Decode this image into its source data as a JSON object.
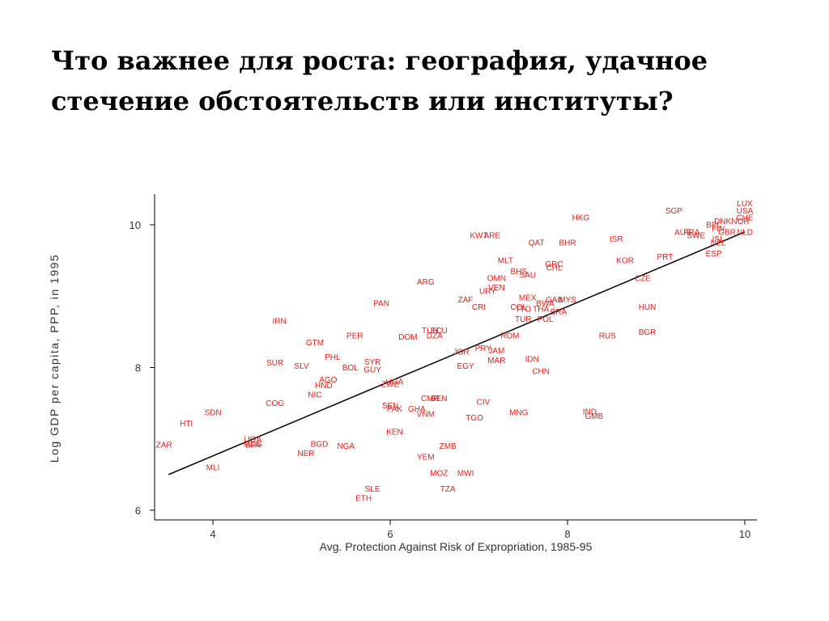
{
  "title": {
    "line1": "Что важнее для роста: география, удачное",
    "line2": "стечение обстоятельств или институты?"
  },
  "colors": {
    "points": "#e0201c",
    "line": "#000000",
    "axis": "#000000"
  },
  "chart_data": {
    "type": "scatter",
    "xlabel": "Avg. Protection Against Risk of Expropriation, 1985-95",
    "ylabel": "Log GDP per capita, PPP, in 1995",
    "xlim": [
      3.3,
      10.15
    ],
    "ylim": [
      5.85,
      10.45
    ],
    "xticks": [
      4,
      6,
      8,
      10
    ],
    "yticks": [
      6,
      8,
      10
    ],
    "grid": false,
    "fit_line": [
      [
        3.5,
        6.5
      ],
      [
        10,
        9.9
      ]
    ],
    "points": [
      {
        "label": "LUX",
        "x": 10.0,
        "y": 10.3
      },
      {
        "label": "USA",
        "x": 10.0,
        "y": 10.2
      },
      {
        "label": "CHE",
        "x": 10.0,
        "y": 10.1
      },
      {
        "label": "NOR",
        "x": 9.95,
        "y": 10.05
      },
      {
        "label": "NLD",
        "x": 10.0,
        "y": 9.9
      },
      {
        "label": "SGP",
        "x": 9.2,
        "y": 10.2
      },
      {
        "label": "HKG",
        "x": 8.15,
        "y": 10.1
      },
      {
        "label": "AUS",
        "x": 9.3,
        "y": 9.9
      },
      {
        "label": "FRA",
        "x": 9.4,
        "y": 9.9
      },
      {
        "label": "SWE",
        "x": 9.45,
        "y": 9.85
      },
      {
        "label": "BEL",
        "x": 9.65,
        "y": 10.0
      },
      {
        "label": "DNK",
        "x": 9.75,
        "y": 10.05
      },
      {
        "label": "FIN",
        "x": 9.7,
        "y": 9.95
      },
      {
        "label": "GBR",
        "x": 9.8,
        "y": 9.9
      },
      {
        "label": "ISL",
        "x": 9.7,
        "y": 9.8
      },
      {
        "label": "NZL",
        "x": 9.7,
        "y": 9.75
      },
      {
        "label": "ESP",
        "x": 9.65,
        "y": 9.6
      },
      {
        "label": "KWT",
        "x": 7.0,
        "y": 9.85
      },
      {
        "label": "ARE",
        "x": 7.15,
        "y": 9.85
      },
      {
        "label": "QAT",
        "x": 7.65,
        "y": 9.75
      },
      {
        "label": "BHR",
        "x": 8.0,
        "y": 9.75
      },
      {
        "label": "ISR",
        "x": 8.55,
        "y": 9.8
      },
      {
        "label": "MLT",
        "x": 7.3,
        "y": 9.5
      },
      {
        "label": "KOR",
        "x": 8.65,
        "y": 9.5
      },
      {
        "label": "PRT",
        "x": 9.1,
        "y": 9.55
      },
      {
        "label": "GRC",
        "x": 7.85,
        "y": 9.45
      },
      {
        "label": "CHL",
        "x": 7.85,
        "y": 9.4
      },
      {
        "label": "BHS",
        "x": 7.45,
        "y": 9.35
      },
      {
        "label": "SAU",
        "x": 7.55,
        "y": 9.3
      },
      {
        "label": "OMN",
        "x": 7.2,
        "y": 9.25
      },
      {
        "label": "CZE",
        "x": 8.85,
        "y": 9.25
      },
      {
        "label": "ARG",
        "x": 6.4,
        "y": 9.2
      },
      {
        "label": "VEN",
        "x": 7.2,
        "y": 9.12
      },
      {
        "label": "URY",
        "x": 7.1,
        "y": 9.07
      },
      {
        "label": "ZAF",
        "x": 6.85,
        "y": 8.95
      },
      {
        "label": "MEX",
        "x": 7.55,
        "y": 8.98
      },
      {
        "label": "GAB",
        "x": 7.85,
        "y": 8.95
      },
      {
        "label": "MYS",
        "x": 8.0,
        "y": 8.95
      },
      {
        "label": "BWA",
        "x": 7.75,
        "y": 8.9
      },
      {
        "label": "COL",
        "x": 7.45,
        "y": 8.85
      },
      {
        "label": "TTO",
        "x": 7.5,
        "y": 8.82
      },
      {
        "label": "THA",
        "x": 7.7,
        "y": 8.82
      },
      {
        "label": "BRA",
        "x": 7.9,
        "y": 8.78
      },
      {
        "label": "CRI",
        "x": 7.0,
        "y": 8.85
      },
      {
        "label": "HUN",
        "x": 8.9,
        "y": 8.85
      },
      {
        "label": "PAN",
        "x": 5.9,
        "y": 8.9
      },
      {
        "label": "TUR",
        "x": 7.5,
        "y": 8.68
      },
      {
        "label": "POL",
        "x": 7.75,
        "y": 8.68
      },
      {
        "label": "IRN",
        "x": 4.75,
        "y": 8.65
      },
      {
        "label": "TUN",
        "x": 6.45,
        "y": 8.52
      },
      {
        "label": "ECU",
        "x": 6.55,
        "y": 8.52
      },
      {
        "label": "DZA",
        "x": 6.5,
        "y": 8.45
      },
      {
        "label": "PER",
        "x": 5.6,
        "y": 8.45
      },
      {
        "label": "DOM",
        "x": 6.2,
        "y": 8.43
      },
      {
        "label": "ROM",
        "x": 7.35,
        "y": 8.45
      },
      {
        "label": "RUS",
        "x": 8.45,
        "y": 8.45
      },
      {
        "label": "BGR",
        "x": 8.9,
        "y": 8.5
      },
      {
        "label": "GTM",
        "x": 5.15,
        "y": 8.35
      },
      {
        "label": "PRY",
        "x": 7.05,
        "y": 8.27
      },
      {
        "label": "JAM",
        "x": 7.2,
        "y": 8.24
      },
      {
        "label": "JOR",
        "x": 6.8,
        "y": 8.22
      },
      {
        "label": "PHL",
        "x": 5.35,
        "y": 8.15
      },
      {
        "label": "IDN",
        "x": 7.6,
        "y": 8.12
      },
      {
        "label": "SYR",
        "x": 5.8,
        "y": 8.08
      },
      {
        "label": "MAR",
        "x": 7.2,
        "y": 8.1
      },
      {
        "label": "SUR",
        "x": 4.7,
        "y": 8.07
      },
      {
        "label": "SLV",
        "x": 5.0,
        "y": 8.02
      },
      {
        "label": "BOL",
        "x": 5.55,
        "y": 8.0
      },
      {
        "label": "GUY",
        "x": 5.8,
        "y": 7.97
      },
      {
        "label": "EGY",
        "x": 6.85,
        "y": 8.02
      },
      {
        "label": "CHN",
        "x": 7.7,
        "y": 7.95
      },
      {
        "label": "AGO",
        "x": 5.3,
        "y": 7.83
      },
      {
        "label": "UGA",
        "x": 6.05,
        "y": 7.8
      },
      {
        "label": "ZWE",
        "x": 6.0,
        "y": 7.77
      },
      {
        "label": "HND",
        "x": 5.25,
        "y": 7.75
      },
      {
        "label": "NIC",
        "x": 5.15,
        "y": 7.62
      },
      {
        "label": "CMR",
        "x": 6.45,
        "y": 7.57
      },
      {
        "label": "BEN",
        "x": 6.55,
        "y": 7.57
      },
      {
        "label": "CIV",
        "x": 7.05,
        "y": 7.52
      },
      {
        "label": "COG",
        "x": 4.7,
        "y": 7.5
      },
      {
        "label": "SEN",
        "x": 6.0,
        "y": 7.47
      },
      {
        "label": "PAK",
        "x": 6.05,
        "y": 7.42
      },
      {
        "label": "GHA",
        "x": 6.3,
        "y": 7.42
      },
      {
        "label": "VNM",
        "x": 6.4,
        "y": 7.35
      },
      {
        "label": "MNG",
        "x": 7.45,
        "y": 7.37
      },
      {
        "label": "IND",
        "x": 8.25,
        "y": 7.38
      },
      {
        "label": "GMB",
        "x": 8.3,
        "y": 7.32
      },
      {
        "label": "TGO",
        "x": 6.95,
        "y": 7.3
      },
      {
        "label": "SDN",
        "x": 4.0,
        "y": 7.37
      },
      {
        "label": "HTI",
        "x": 3.7,
        "y": 7.22
      },
      {
        "label": "KEN",
        "x": 6.05,
        "y": 7.1
      },
      {
        "label": "UGA",
        "x": 4.45,
        "y": 7.0
      },
      {
        "label": "MDG",
        "x": 4.45,
        "y": 6.93
      },
      {
        "label": "BFA",
        "x": 4.45,
        "y": 6.92
      },
      {
        "label": "BGD",
        "x": 5.2,
        "y": 6.93
      },
      {
        "label": "ZAR",
        "x": 3.45,
        "y": 6.92
      },
      {
        "label": "NGA",
        "x": 5.5,
        "y": 6.9
      },
      {
        "label": "ZMB",
        "x": 6.65,
        "y": 6.9
      },
      {
        "label": "NER",
        "x": 5.05,
        "y": 6.8
      },
      {
        "label": "YEM",
        "x": 6.4,
        "y": 6.75
      },
      {
        "label": "MLI",
        "x": 4.0,
        "y": 6.6
      },
      {
        "label": "MOZ",
        "x": 6.55,
        "y": 6.52
      },
      {
        "label": "MWI",
        "x": 6.85,
        "y": 6.52
      },
      {
        "label": "SLE",
        "x": 5.8,
        "y": 6.3
      },
      {
        "label": "TZA",
        "x": 6.65,
        "y": 6.3
      },
      {
        "label": "ETH",
        "x": 5.7,
        "y": 6.17
      }
    ]
  }
}
